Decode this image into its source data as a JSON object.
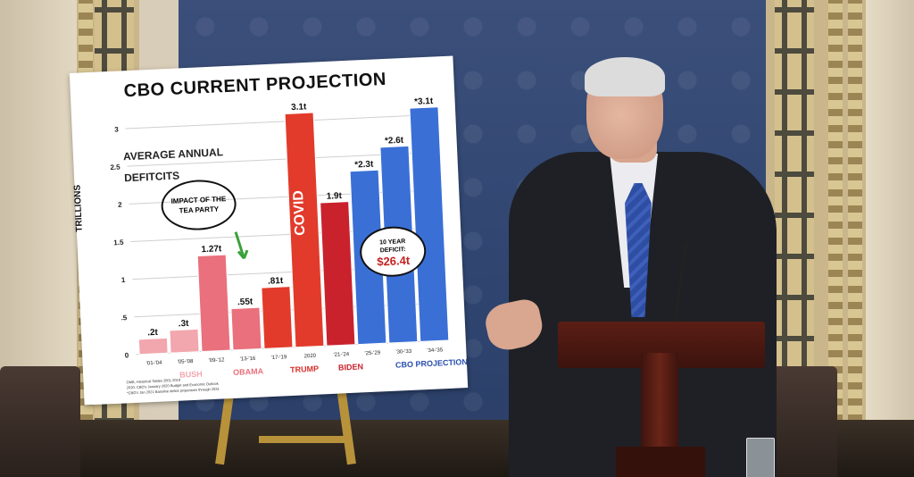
{
  "poster": {
    "title": "CBO CURRENT PROJECTION",
    "subtitle_line1": "AVERAGE ANNUAL",
    "subtitle_line2": "DEFITCITS",
    "ylabel": "TRILLIONS",
    "callout_tea_party": "IMPACT OF THE TEA PARTY",
    "callout_deficit_line1": "10 YEAR",
    "callout_deficit_line2": "DEFICIT:",
    "callout_deficit_value": "$26.4t",
    "footnote_lines": [
      "OMB, Historical Tables 2001-2019",
      "2020: CBO's January 2020 Budget and Economic Outlook",
      "*CBO's Jan 2021 Baseline deficit projections through 2031"
    ]
  },
  "chart_data": {
    "type": "bar",
    "title": "CBO CURRENT PROJECTION",
    "ylabel": "TRILLIONS",
    "ylim": [
      0,
      3.2
    ],
    "y_ticks": [
      "0",
      ".5",
      "1",
      "1.5",
      "2",
      "2.5",
      "3"
    ],
    "categories": [
      "'01-'04",
      "'05-'08",
      "'09-'12",
      "'13-'16",
      "'17-'19",
      "2020",
      "'21-'24",
      "'25-'29",
      "'30-'33",
      "'34-'35"
    ],
    "values": [
      0.2,
      0.3,
      1.27,
      0.55,
      0.81,
      3.1,
      1.9,
      2.3,
      2.6,
      3.1
    ],
    "value_labels": [
      ".2t",
      ".3t",
      "1.27t",
      ".55t",
      ".81t",
      "3.1t",
      "1.9t",
      "*2.3t",
      "*2.6t",
      "*3.1t"
    ],
    "bar_colors": [
      "#f2a6ad",
      "#f2a6ad",
      "#e9707c",
      "#e9707c",
      "#e23b2b",
      "#e23b2b",
      "#c9222d",
      "#3a6fd6",
      "#3a6fd6",
      "#3a6fd6"
    ],
    "covid_label": "COVID",
    "groups": [
      {
        "label": "BUSH",
        "color": "#f2a6ad"
      },
      {
        "label": "OBAMA",
        "color": "#e9707c"
      },
      {
        "label": "TRUMP",
        "color": "#d9302a"
      },
      {
        "label": "BIDEN",
        "color": "#c9222d"
      },
      {
        "label": "CBO PROJECTION",
        "color": "#2a4fb0"
      }
    ],
    "grid": true,
    "legend": "bottom"
  }
}
